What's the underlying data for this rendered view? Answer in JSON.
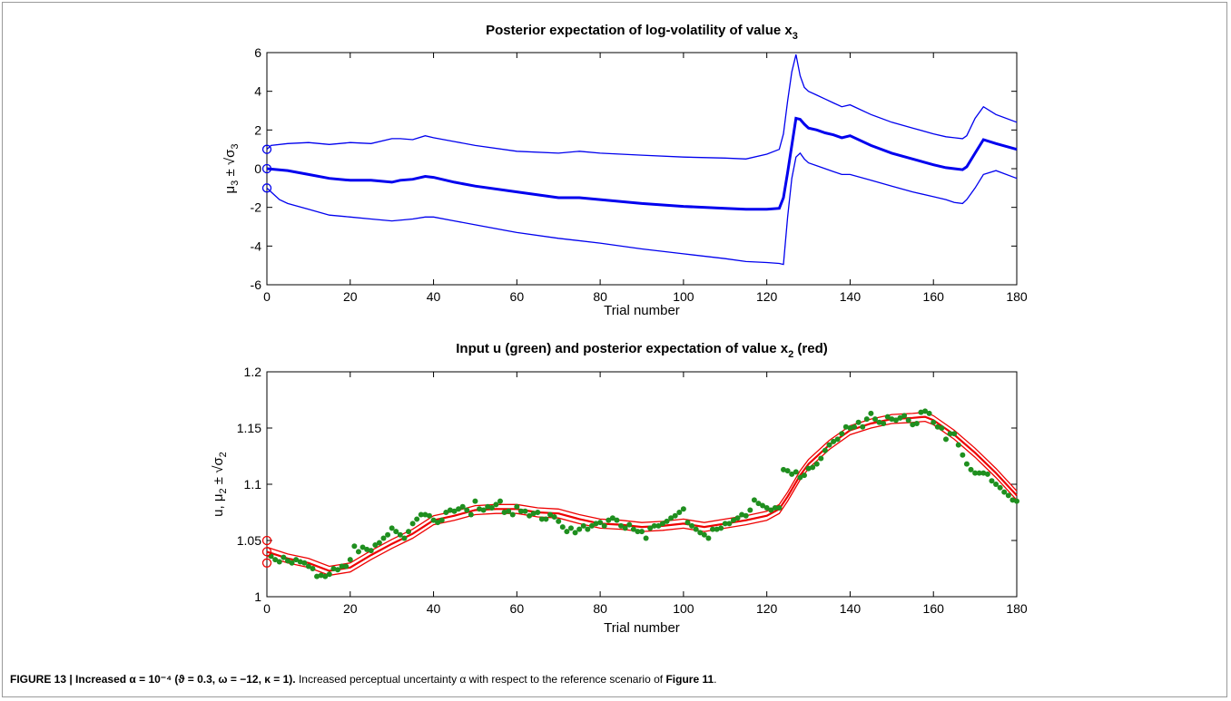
{
  "chart_data": [
    {
      "type": "line",
      "title": "Posterior expectation of log-volatility of value x",
      "title_sub": "3",
      "xlabel": "Trial number",
      "ylabel": "μ3 ± √σ3",
      "xlim": [
        0,
        180
      ],
      "ylim": [
        -6,
        6
      ],
      "xticks": [
        0,
        20,
        40,
        60,
        80,
        100,
        120,
        140,
        160,
        180
      ],
      "yticks": [
        -6,
        -4,
        -2,
        0,
        2,
        4,
        6
      ],
      "color": "#0000ee",
      "initial_markers": [
        1,
        0,
        -1
      ],
      "series": [
        {
          "role": "mean",
          "x": [
            0,
            5,
            10,
            15,
            20,
            25,
            30,
            32,
            35,
            38,
            40,
            45,
            50,
            60,
            70,
            75,
            80,
            90,
            100,
            110,
            115,
            120,
            123,
            124,
            125,
            126,
            127,
            128,
            129,
            130,
            132,
            134,
            136,
            138,
            140,
            145,
            150,
            155,
            160,
            163,
            165,
            167,
            168,
            170,
            172,
            175,
            180
          ],
          "y": [
            0,
            -0.1,
            -0.3,
            -0.5,
            -0.6,
            -0.6,
            -0.7,
            -0.6,
            -0.55,
            -0.4,
            -0.45,
            -0.7,
            -0.9,
            -1.2,
            -1.5,
            -1.5,
            -1.6,
            -1.8,
            -1.95,
            -2.05,
            -2.1,
            -2.1,
            -2.05,
            -1.5,
            -0.2,
            1.2,
            2.6,
            2.55,
            2.3,
            2.1,
            2.0,
            1.85,
            1.75,
            1.6,
            1.7,
            1.2,
            0.8,
            0.5,
            0.2,
            0.05,
            0.0,
            -0.05,
            0.1,
            0.8,
            1.5,
            1.3,
            1.0
          ]
        },
        {
          "role": "upper",
          "x": [
            0,
            1,
            5,
            10,
            15,
            20,
            25,
            30,
            32,
            35,
            38,
            40,
            45,
            50,
            60,
            70,
            75,
            80,
            90,
            100,
            110,
            115,
            120,
            123,
            124,
            125,
            126,
            127,
            128,
            129,
            130,
            132,
            134,
            136,
            138,
            140,
            145,
            150,
            155,
            160,
            163,
            165,
            167,
            168,
            170,
            172,
            175,
            180
          ],
          "y": [
            1.0,
            1.2,
            1.3,
            1.35,
            1.25,
            1.35,
            1.3,
            1.55,
            1.55,
            1.5,
            1.7,
            1.6,
            1.4,
            1.2,
            0.9,
            0.8,
            0.9,
            0.8,
            0.7,
            0.6,
            0.55,
            0.5,
            0.75,
            1.0,
            1.8,
            3.5,
            5.0,
            5.9,
            4.8,
            4.2,
            4.0,
            3.8,
            3.6,
            3.4,
            3.2,
            3.3,
            2.8,
            2.4,
            2.1,
            1.8,
            1.65,
            1.6,
            1.55,
            1.7,
            2.6,
            3.2,
            2.8,
            2.4
          ]
        },
        {
          "role": "lower",
          "x": [
            0,
            1,
            3,
            5,
            10,
            15,
            20,
            25,
            30,
            35,
            38,
            40,
            45,
            50,
            60,
            70,
            80,
            90,
            100,
            110,
            115,
            120,
            123,
            124,
            125,
            126,
            127,
            128,
            129,
            130,
            132,
            134,
            136,
            138,
            140,
            145,
            150,
            155,
            160,
            163,
            165,
            167,
            168,
            170,
            172,
            175,
            180
          ],
          "y": [
            -1.0,
            -1.2,
            -1.6,
            -1.8,
            -2.1,
            -2.4,
            -2.5,
            -2.6,
            -2.7,
            -2.6,
            -2.5,
            -2.5,
            -2.7,
            -2.9,
            -3.3,
            -3.6,
            -3.85,
            -4.15,
            -4.4,
            -4.65,
            -4.8,
            -4.85,
            -4.9,
            -4.95,
            -2.5,
            -0.5,
            0.6,
            0.8,
            0.5,
            0.3,
            0.15,
            0.0,
            -0.15,
            -0.3,
            -0.3,
            -0.6,
            -0.9,
            -1.2,
            -1.45,
            -1.6,
            -1.75,
            -1.8,
            -1.6,
            -1.0,
            -0.3,
            -0.1,
            -0.5
          ]
        }
      ]
    },
    {
      "type": "line",
      "title": "Input u (green) and posterior expectation of value x",
      "title_sub": "2",
      "title_end": " (red)",
      "xlabel": "Trial number",
      "ylabel": "u, μ2 ± √σ2",
      "xlim": [
        0,
        180
      ],
      "ylim": [
        1,
        1.2
      ],
      "xticks": [
        0,
        20,
        40,
        60,
        80,
        100,
        120,
        140,
        160,
        180
      ],
      "yticks": [
        1,
        1.05,
        1.1,
        1.15,
        1.2
      ],
      "line_color": "#ee0000",
      "point_color": "#1f8f1f",
      "initial_markers": [
        1.05,
        1.04,
        1.03
      ],
      "series": [
        {
          "role": "mean",
          "x": [
            0,
            5,
            10,
            15,
            20,
            25,
            30,
            35,
            40,
            45,
            50,
            55,
            60,
            65,
            70,
            75,
            80,
            85,
            90,
            95,
            100,
            105,
            110,
            115,
            120,
            123,
            125,
            128,
            130,
            135,
            140,
            145,
            150,
            155,
            158,
            160,
            165,
            170,
            175,
            180
          ],
          "y": [
            1.04,
            1.034,
            1.03,
            1.023,
            1.026,
            1.037,
            1.047,
            1.056,
            1.068,
            1.072,
            1.077,
            1.078,
            1.078,
            1.075,
            1.074,
            1.069,
            1.065,
            1.064,
            1.062,
            1.063,
            1.065,
            1.062,
            1.065,
            1.068,
            1.072,
            1.078,
            1.089,
            1.108,
            1.118,
            1.135,
            1.148,
            1.154,
            1.158,
            1.159,
            1.16,
            1.157,
            1.144,
            1.128,
            1.11,
            1.09
          ]
        },
        {
          "role": "upper",
          "offset": 0.004
        },
        {
          "role": "lower",
          "offset": -0.004
        },
        {
          "role": "input",
          "x": [
            1,
            2,
            3,
            4,
            5,
            6,
            7,
            8,
            9,
            10,
            11,
            12,
            13,
            14,
            15,
            16,
            17,
            18,
            19,
            20,
            21,
            22,
            23,
            24,
            25,
            26,
            27,
            28,
            29,
            30,
            31,
            32,
            33,
            34,
            35,
            36,
            37,
            38,
            39,
            40,
            41,
            42,
            43,
            44,
            45,
            46,
            47,
            48,
            49,
            50,
            51,
            52,
            53,
            54,
            55,
            56,
            57,
            58,
            59,
            60,
            61,
            62,
            63,
            64,
            65,
            66,
            67,
            68,
            69,
            70,
            71,
            72,
            73,
            74,
            75,
            76,
            77,
            78,
            79,
            80,
            81,
            82,
            83,
            84,
            85,
            86,
            87,
            88,
            89,
            90,
            91,
            92,
            93,
            94,
            95,
            96,
            97,
            98,
            99,
            100,
            101,
            102,
            103,
            104,
            105,
            106,
            107,
            108,
            109,
            110,
            111,
            112,
            113,
            114,
            115,
            116,
            117,
            118,
            119,
            120,
            121,
            122,
            123,
            124,
            125,
            126,
            127,
            128,
            129,
            130,
            131,
            132,
            133,
            134,
            135,
            136,
            137,
            138,
            139,
            140,
            141,
            142,
            143,
            144,
            145,
            146,
            147,
            148,
            149,
            150,
            151,
            152,
            153,
            154,
            155,
            156,
            157,
            158,
            159,
            160,
            161,
            162,
            163,
            164,
            165,
            166,
            167,
            168,
            169,
            170,
            171,
            172,
            173,
            174,
            175,
            176,
            177,
            178,
            179,
            180
          ],
          "y": [
            1.036,
            1.033,
            1.031,
            1.035,
            1.032,
            1.03,
            1.033,
            1.031,
            1.03,
            1.027,
            1.025,
            1.018,
            1.019,
            1.018,
            1.02,
            1.025,
            1.024,
            1.027,
            1.027,
            1.033,
            1.045,
            1.04,
            1.044,
            1.042,
            1.041,
            1.046,
            1.048,
            1.052,
            1.055,
            1.061,
            1.058,
            1.055,
            1.052,
            1.058,
            1.065,
            1.069,
            1.073,
            1.073,
            1.072,
            1.068,
            1.066,
            1.068,
            1.075,
            1.077,
            1.076,
            1.078,
            1.08,
            1.077,
            1.073,
            1.085,
            1.078,
            1.077,
            1.08,
            1.079,
            1.082,
            1.085,
            1.075,
            1.076,
            1.073,
            1.08,
            1.076,
            1.076,
            1.072,
            1.074,
            1.075,
            1.069,
            1.069,
            1.073,
            1.071,
            1.067,
            1.062,
            1.058,
            1.061,
            1.057,
            1.06,
            1.063,
            1.06,
            1.063,
            1.065,
            1.066,
            1.063,
            1.068,
            1.07,
            1.068,
            1.063,
            1.061,
            1.064,
            1.06,
            1.058,
            1.058,
            1.052,
            1.061,
            1.063,
            1.063,
            1.065,
            1.067,
            1.07,
            1.072,
            1.075,
            1.078,
            1.066,
            1.063,
            1.06,
            1.057,
            1.055,
            1.052,
            1.06,
            1.06,
            1.061,
            1.065,
            1.065,
            1.068,
            1.07,
            1.073,
            1.072,
            1.077,
            1.086,
            1.083,
            1.081,
            1.079,
            1.077,
            1.079,
            1.079,
            1.113,
            1.112,
            1.109,
            1.111,
            1.106,
            1.108,
            1.114,
            1.115,
            1.118,
            1.123,
            1.13,
            1.135,
            1.138,
            1.14,
            1.145,
            1.151,
            1.15,
            1.151,
            1.155,
            1.151,
            1.158,
            1.163,
            1.158,
            1.155,
            1.154,
            1.16,
            1.158,
            1.157,
            1.159,
            1.161,
            1.157,
            1.153,
            1.154,
            1.164,
            1.165,
            1.163,
            1.155,
            1.151,
            1.15,
            1.14,
            1.145,
            1.145,
            1.135,
            1.126,
            1.118,
            1.113,
            1.11,
            1.11,
            1.11,
            1.109,
            1.103,
            1.1,
            1.097,
            1.093,
            1.09,
            1.086,
            1.085
          ]
        }
      ]
    }
  ],
  "caption": {
    "label": "FIGURE 13 | Increased α = 10⁻⁴ (ϑ = 0.3, ω = −12, κ = 1).",
    "text_before": " Increased perceptual uncertainty α with respect to the reference scenario of ",
    "ref": "Figure 11",
    "text_after": "."
  }
}
